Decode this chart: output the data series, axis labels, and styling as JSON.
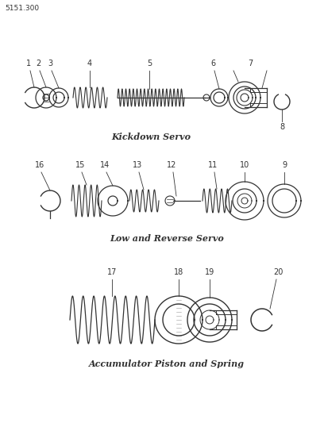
{
  "page_id": "5151.300",
  "bg_color": "#ffffff",
  "line_color": "#333333",
  "title1": "Kickdown Servo",
  "title2": "Low and Reverse Servo",
  "title3": "Accumulator Piston and Spring",
  "title_fontsize": 8,
  "label_fontsize": 7,
  "pageid_fontsize": 6.5,
  "fig_width": 4.08,
  "fig_height": 5.33
}
